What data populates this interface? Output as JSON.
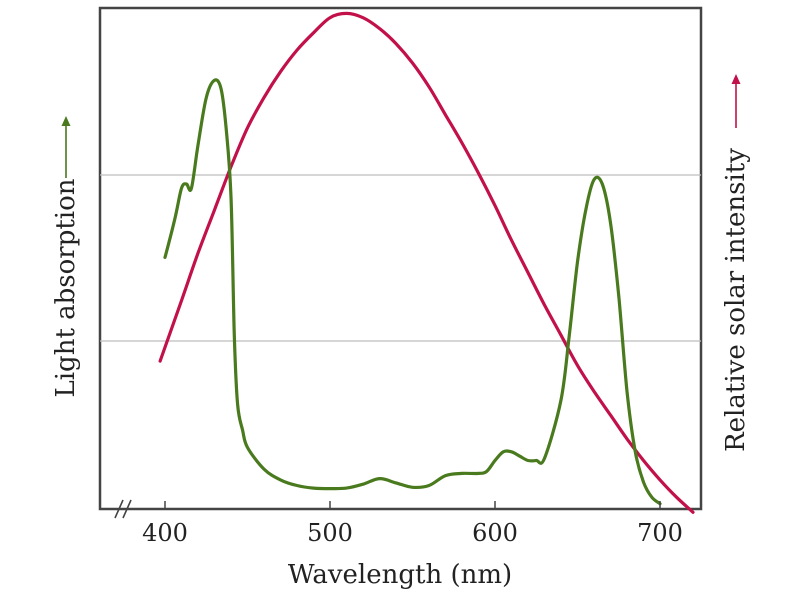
{
  "chart_data": {
    "type": "line",
    "xlabel": "Wavelength (nm)",
    "ylabel_left": "Light absorption",
    "ylabel_right": "Relative solar intensity",
    "xlim": [
      380,
      725
    ],
    "ylim": [
      0,
      100
    ],
    "xticks": [
      400,
      500,
      600,
      700
    ],
    "grid": true,
    "axis_break": true,
    "series": [
      {
        "name": "Light absorption",
        "color": "#4a7a1e",
        "x": [
          400,
          406,
          410,
          413,
          416,
          420,
          425,
          430,
          434,
          437,
          440,
          442,
          444,
          447,
          450,
          460,
          470,
          480,
          490,
          500,
          510,
          520,
          530,
          540,
          550,
          560,
          570,
          580,
          590,
          595,
          600,
          605,
          610,
          615,
          620,
          625,
          630,
          640,
          645,
          650,
          655,
          660,
          665,
          670,
          675,
          680,
          685,
          690,
          695,
          700
        ],
        "y": [
          58,
          67,
          74,
          75,
          74,
          84,
          95,
          99,
          97,
          88,
          72,
          40,
          24,
          18,
          14,
          9,
          6.5,
          5.2,
          4.6,
          4.5,
          4.6,
          5.5,
          6.8,
          5.8,
          4.8,
          5.2,
          7.5,
          8,
          8,
          8.5,
          11,
          13,
          13,
          12,
          11,
          11,
          11.5,
          25,
          40,
          57,
          69,
          76,
          75,
          66,
          49,
          27,
          13,
          6,
          2.5,
          1
        ]
      },
      {
        "name": "Relative solar intensity",
        "color": "#c2114a",
        "x": [
          397,
          410,
          420,
          430,
          440,
          450,
          460,
          470,
          480,
          490,
          500,
          510,
          520,
          530,
          540,
          550,
          560,
          570,
          580,
          590,
          600,
          610,
          620,
          630,
          640,
          650,
          660,
          670,
          680,
          690,
          700,
          710,
          720
        ],
        "y": [
          34,
          48,
          59,
          69,
          79,
          88,
          95,
          101,
          106,
          110,
          113.5,
          114.5,
          113.5,
          111,
          107.5,
          103,
          97.5,
          91,
          84.5,
          77.5,
          70,
          62,
          54.5,
          47,
          40,
          33,
          27,
          21.5,
          16,
          11,
          6.5,
          2.5,
          -1
        ]
      }
    ]
  }
}
